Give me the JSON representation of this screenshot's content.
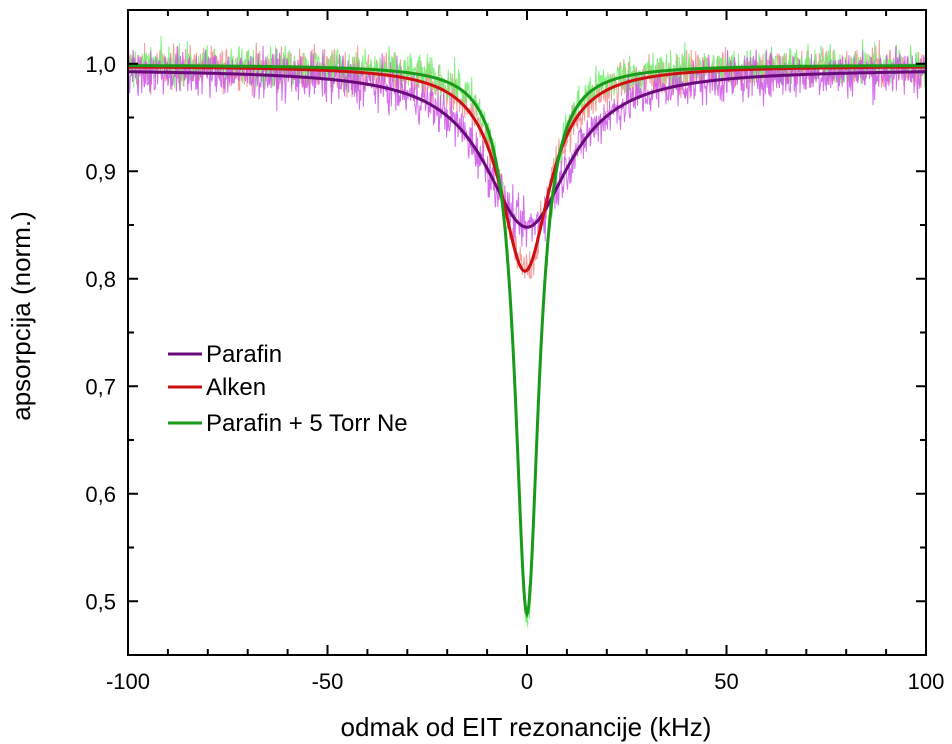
{
  "chart_data": {
    "type": "line",
    "xlabel": "odmak od EIT rezonancije (kHz)",
    "ylabel": "apsorpcija (norm.)",
    "xlim": [
      -100,
      100
    ],
    "ylim": [
      0.45,
      1.05
    ],
    "x_ticks": [
      {
        "value": -100,
        "label": "-100"
      },
      {
        "value": -50,
        "label": "-50"
      },
      {
        "value": 0,
        "label": "0"
      },
      {
        "value": 50,
        "label": "50"
      },
      {
        "value": 100,
        "label": "100"
      }
    ],
    "y_ticks": [
      {
        "value": 0.5,
        "label": "0,5"
      },
      {
        "value": 0.6,
        "label": "0,6"
      },
      {
        "value": 0.7,
        "label": "0,7"
      },
      {
        "value": 0.8,
        "label": "0,8"
      },
      {
        "value": 0.9,
        "label": "0,9"
      },
      {
        "value": 1.0,
        "label": "1,0"
      }
    ],
    "grid": false,
    "legend_position": "middle-left",
    "series": [
      {
        "name": "Parafin",
        "fit_color": "#6a0a7a",
        "data_color": "#cc55e8",
        "baseline": 0.995,
        "min": 0.848,
        "center": 0.0,
        "hwhm": 13.0,
        "noise": 0.028
      },
      {
        "name": "Alken",
        "fit_color": "#cc1010",
        "data_color": "#f58c8c",
        "baseline": 0.998,
        "min": 0.807,
        "center": -0.5,
        "hwhm": 7.5,
        "noise": 0.025
      },
      {
        "name": "Parafin + 5 Torr Ne",
        "fit_color": "#1a9a1a",
        "data_color": "#6ef06e",
        "baseline": 0.999,
        "min": 0.488,
        "center": 0.0,
        "hwhm": 3.6,
        "noise": 0.024
      }
    ]
  }
}
